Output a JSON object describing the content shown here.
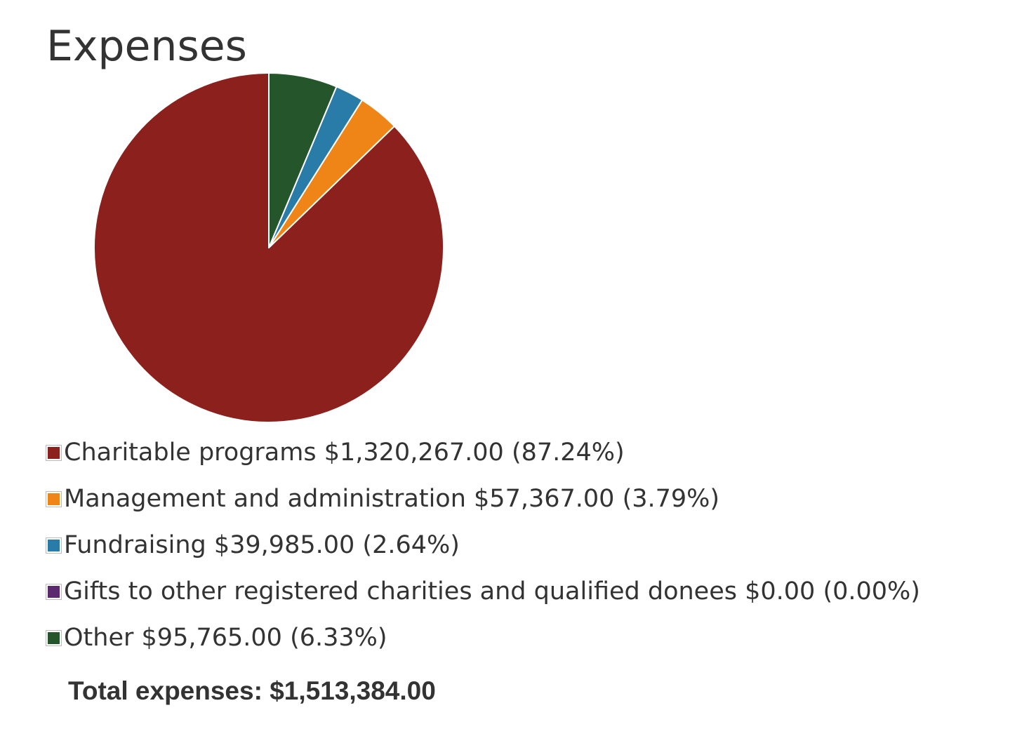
{
  "chart_data": {
    "type": "pie",
    "title": "Expenses",
    "slices": [
      {
        "label": "Charitable programs",
        "amount": "$1,320,267.00",
        "percent_text": "(87.24%)",
        "value": 1320267.0,
        "color": "#8b201c"
      },
      {
        "label": "Management and administration",
        "amount": "$57,367.00",
        "percent_text": "(3.79%)",
        "value": 57367.0,
        "color": "#ee8516"
      },
      {
        "label": "Fundraising",
        "amount": "$39,985.00",
        "percent_text": "(2.64%)",
        "value": 39985.0,
        "color": "#2a7ca8"
      },
      {
        "label": "Gifts to other registered charities and qualified donees",
        "amount": "$0.00",
        "percent_text": "(0.00%)",
        "value": 0.0,
        "color": "#5b2a6e"
      },
      {
        "label": "Other",
        "amount": "$95,765.00",
        "percent_text": "(6.33%)",
        "value": 95765.0,
        "color": "#25552a"
      }
    ],
    "start": "12 o'clock",
    "direction": "counter-clockwise",
    "legend_position": "bottom"
  },
  "total": {
    "label": "Total expenses:",
    "value": "$1,513,384.00"
  }
}
